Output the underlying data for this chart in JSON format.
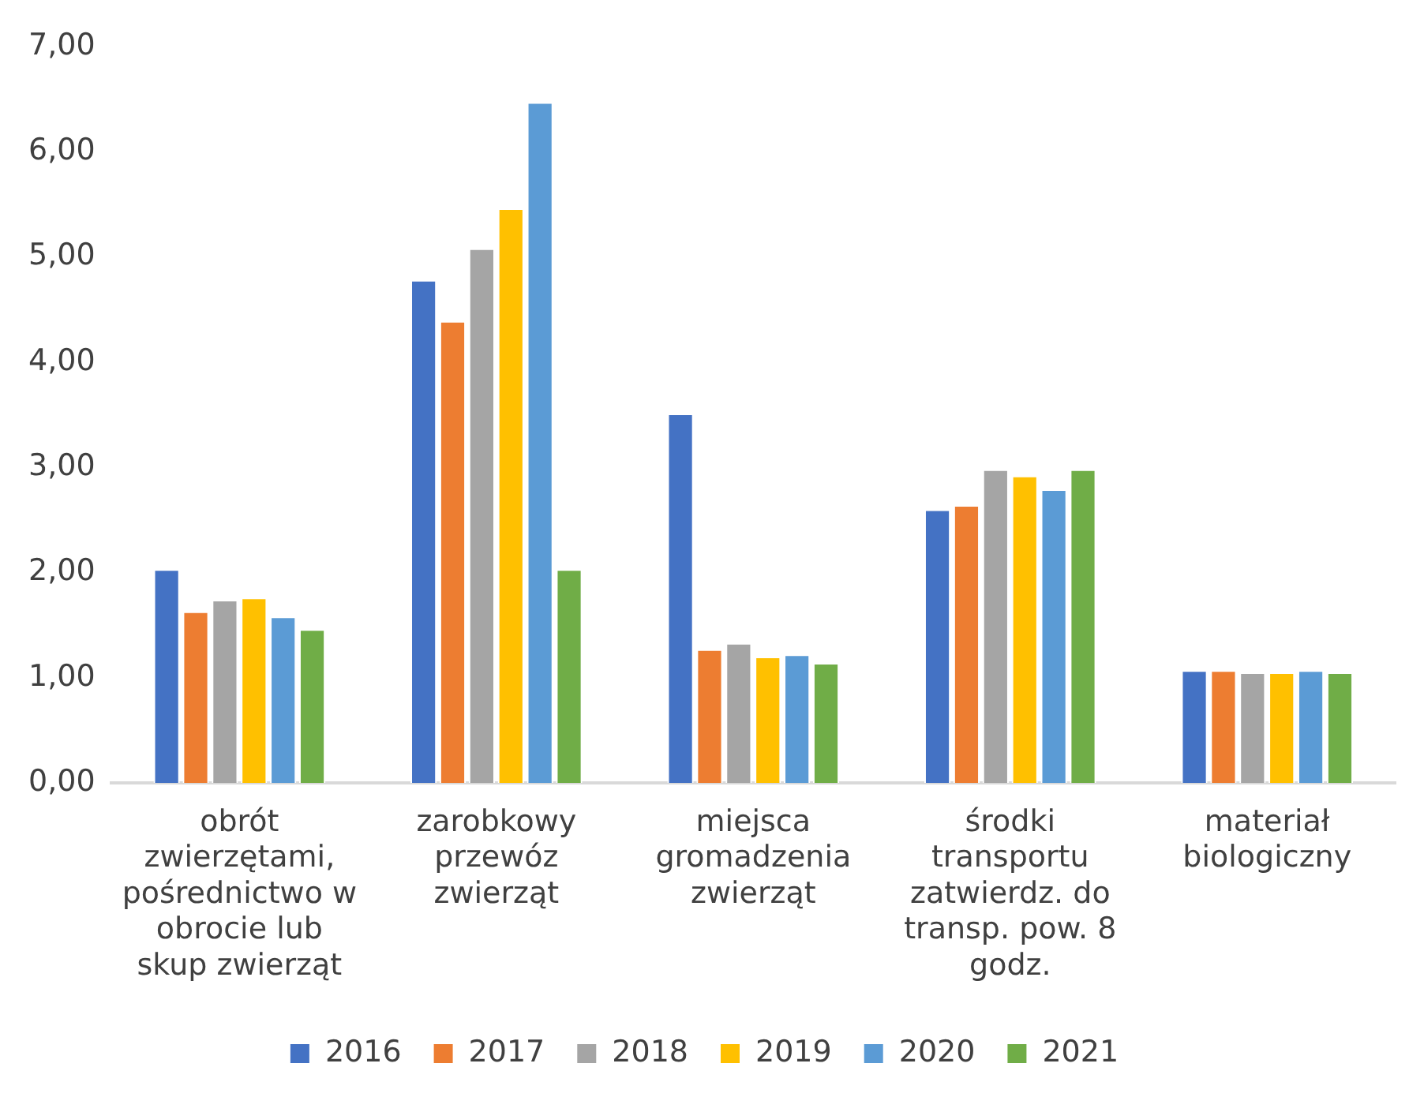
{
  "chart_data": {
    "type": "bar",
    "categories": [
      "obrót zwierzętami, pośrednictwo w obrocie lub skup zwierząt",
      "zarobkowy przewóz zwierząt",
      "miejsca gromadzenia zwierząt",
      "środki transportu zatwierdz. do transp. pow. 8 godz.",
      "materiał biologiczny"
    ],
    "series": [
      {
        "name": "2016",
        "color": "#4472c4",
        "values": [
          2.03,
          4.78,
          3.51,
          2.6,
          1.07
        ]
      },
      {
        "name": "2017",
        "color": "#ed7d31",
        "values": [
          1.63,
          4.39,
          1.27,
          2.64,
          1.07
        ]
      },
      {
        "name": "2018",
        "color": "#a5a5a5",
        "values": [
          1.74,
          5.08,
          1.33,
          2.98,
          1.05
        ]
      },
      {
        "name": "2019",
        "color": "#ffc000",
        "values": [
          1.76,
          5.46,
          1.2,
          2.92,
          1.05
        ]
      },
      {
        "name": "2020",
        "color": "#5b9bd5",
        "values": [
          1.58,
          6.47,
          1.22,
          2.79,
          1.07
        ]
      },
      {
        "name": "2021",
        "color": "#70ad47",
        "values": [
          1.46,
          2.03,
          1.14,
          2.98,
          1.05
        ]
      }
    ],
    "ylim": [
      0,
      7
    ],
    "yticks": [
      {
        "value": 0,
        "label": "0,00"
      },
      {
        "value": 1,
        "label": "1,00"
      },
      {
        "value": 2,
        "label": "2,00"
      },
      {
        "value": 3,
        "label": "3,00"
      },
      {
        "value": 4,
        "label": "4,00"
      },
      {
        "value": 5,
        "label": "5,00"
      },
      {
        "value": 6,
        "label": "6,00"
      },
      {
        "value": 7,
        "label": "7,00"
      }
    ],
    "grid": false,
    "legend": "bottom"
  }
}
